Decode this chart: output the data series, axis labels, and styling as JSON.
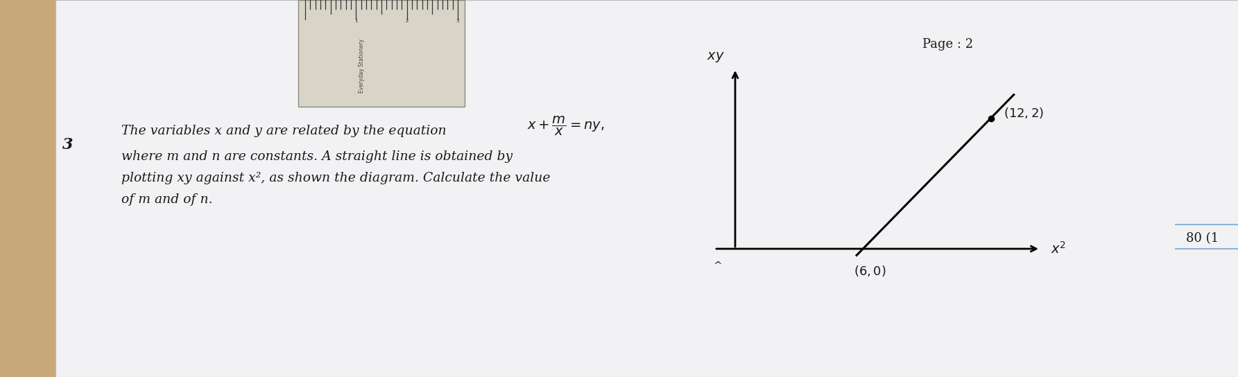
{
  "page_label": "Page : 2",
  "question_number": "3",
  "question_text_line1": "The variables x and y are related by the equation",
  "equation_latex": "$x+\\dfrac{m}{x}=ny,$",
  "question_text_line2": "where m and n are constants. A straight line is obtained by",
  "question_text_line3": "plotting xy against x², as shown the diagram. Calculate the value",
  "question_text_line4": "of m and of n.",
  "marks": "80 (1",
  "graph_point1": [
    6,
    0
  ],
  "graph_point2": [
    12,
    2
  ],
  "x_axis_label": "$x^2$",
  "y_axis_label": "$xy$",
  "wood_color": "#c8a87a",
  "paper_color": "#f2f2f4",
  "ruler_color": "#d8d5c8",
  "text_color": "#1a1a1a"
}
